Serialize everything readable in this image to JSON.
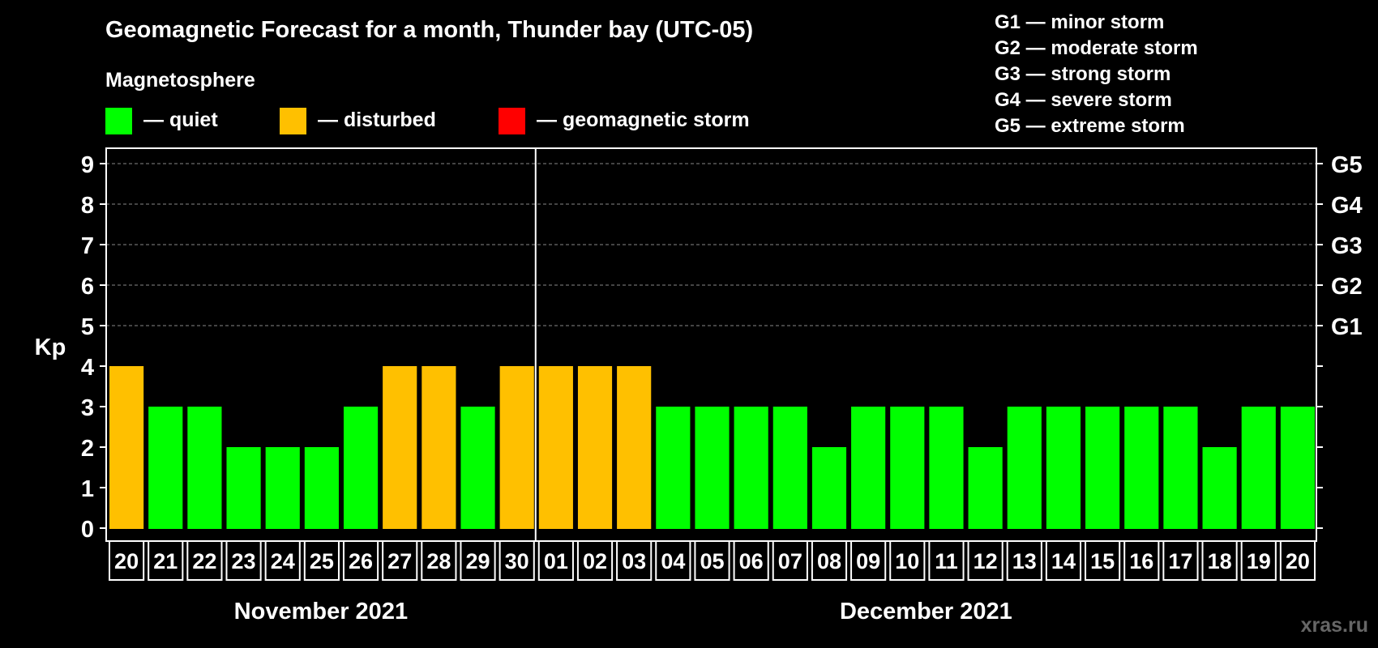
{
  "title": "Geomagnetic Forecast for a month, Thunder bay (UTC-05)",
  "legend": {
    "heading": "Magnetosphere",
    "items": [
      {
        "label": "— quiet",
        "color": "#00ff00"
      },
      {
        "label": "— disturbed",
        "color": "#ffc000"
      },
      {
        "label": "— geomagnetic storm",
        "color": "#ff0000"
      }
    ]
  },
  "storm_scale": [
    "G1 — minor storm",
    "G2 — moderate storm",
    "G3 — strong storm",
    "G4 — severe storm",
    "G5 — extreme storm"
  ],
  "watermark": "xras.ru",
  "chart_data": {
    "type": "bar",
    "title": "Geomagnetic Forecast for a month, Thunder bay (UTC-05)",
    "ylabel": "Kp",
    "ylim": [
      0,
      9
    ],
    "yticks": [
      "0",
      "1",
      "2",
      "3",
      "4",
      "5",
      "6",
      "7",
      "8",
      "9"
    ],
    "right_axis_labels": [
      {
        "kp": 5,
        "label": "G1"
      },
      {
        "kp": 6,
        "label": "G2"
      },
      {
        "kp": 7,
        "label": "G3"
      },
      {
        "kp": 8,
        "label": "G4"
      },
      {
        "kp": 9,
        "label": "G5"
      }
    ],
    "months": [
      {
        "label": "November 2021",
        "start": 0,
        "end": 10
      },
      {
        "label": "December 2021",
        "start": 11,
        "end": 30
      }
    ],
    "categories": [
      "20",
      "21",
      "22",
      "23",
      "24",
      "25",
      "26",
      "27",
      "28",
      "29",
      "30",
      "01",
      "02",
      "03",
      "04",
      "05",
      "06",
      "07",
      "08",
      "09",
      "10",
      "11",
      "12",
      "13",
      "14",
      "15",
      "16",
      "17",
      "18",
      "19",
      "20"
    ],
    "values": [
      4,
      3,
      3,
      2,
      2,
      2,
      3,
      4,
      4,
      3,
      4,
      4,
      4,
      4,
      3,
      3,
      3,
      3,
      2,
      3,
      3,
      3,
      2,
      3,
      3,
      3,
      3,
      3,
      2,
      3,
      3
    ],
    "status": [
      "disturbed",
      "quiet",
      "quiet",
      "quiet",
      "quiet",
      "quiet",
      "quiet",
      "disturbed",
      "disturbed",
      "quiet",
      "disturbed",
      "disturbed",
      "disturbed",
      "disturbed",
      "quiet",
      "quiet",
      "quiet",
      "quiet",
      "quiet",
      "quiet",
      "quiet",
      "quiet",
      "quiet",
      "quiet",
      "quiet",
      "quiet",
      "quiet",
      "quiet",
      "quiet",
      "quiet",
      "quiet"
    ],
    "status_colors": {
      "quiet": "#00ff00",
      "disturbed": "#ffc000",
      "storm": "#ff0000"
    }
  }
}
